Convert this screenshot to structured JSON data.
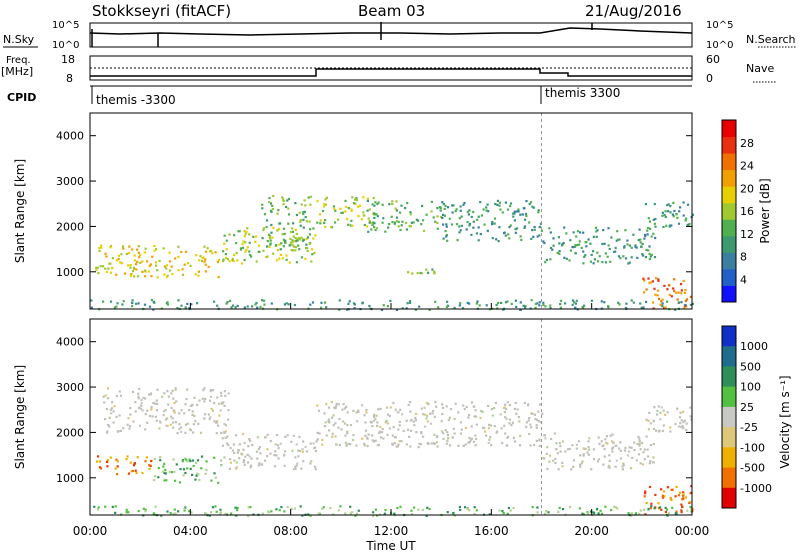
{
  "header": {
    "station": "Stokkseyri (fitACF)",
    "beam": "Beam 03",
    "date": "21/Aug/2016"
  },
  "top_panels": {
    "nsky_label": "N.Sky",
    "nsky_ticks": [
      "10^5",
      "10^0"
    ],
    "nsearch_label": "N.Search",
    "nsearch_ticks": [
      "10^5",
      "10^0"
    ],
    "freq_label": "Freq.",
    "freq_unit": "[MHz]",
    "freq_ticks": [
      "18",
      "8"
    ],
    "nave_label": "Nave",
    "nave_ticks": [
      "60",
      "0"
    ],
    "cpid_label": "CPID",
    "cpid_segments": [
      "themis -3300",
      "themis 3300"
    ]
  },
  "colors": {
    "power_scale": [
      "#1010ff",
      "#2060c8",
      "#3a7fa0",
      "#3d9a70",
      "#50b050",
      "#a0c830",
      "#e8d000",
      "#f0a000",
      "#f07000",
      "#e83010",
      "#e80000"
    ],
    "velocity_scale": [
      "#1030c8",
      "#1f6c8c",
      "#2e8f5a",
      "#52c040",
      "#b4d296",
      "#c8c8c4",
      "#dcc878",
      "#f0b000",
      "#f07000",
      "#e83808",
      "#e00000"
    ],
    "ground_scatter": "#c0c0b8"
  },
  "chart_data": [
    {
      "type": "heatmap",
      "title": "Power",
      "xlabel": "Time UT",
      "ylabel": "Slant Range [km]",
      "x_ticks": [
        "00:00",
        "04:00",
        "08:00",
        "12:00",
        "16:00",
        "20:00",
        "00:00"
      ],
      "y_ticks": [
        "1000",
        "2000",
        "3000",
        "4000"
      ],
      "xlim_hours": [
        0,
        24
      ],
      "ylim_km": [
        180,
        4500
      ],
      "colorbar_label": "Power [dB]",
      "colorbar_ticks": [
        "4",
        "8",
        "12",
        "16",
        "20",
        "24",
        "28"
      ],
      "scatter_bands": [
        {
          "t0": 0.2,
          "t1": 5.2,
          "r0": 900,
          "r1": 1600,
          "level": 6
        },
        {
          "t0": 5.2,
          "t1": 9.0,
          "r0": 1200,
          "r1": 2000,
          "level": 5
        },
        {
          "t0": 6.8,
          "t1": 8.8,
          "r0": 1500,
          "r1": 2700,
          "level": 4
        },
        {
          "t0": 9.0,
          "t1": 11.3,
          "r0": 2000,
          "r1": 2700,
          "level": 5
        },
        {
          "t0": 11.0,
          "t1": 14.0,
          "r0": 1900,
          "r1": 2600,
          "level": 4
        },
        {
          "t0": 14.0,
          "t1": 18.0,
          "r0": 1700,
          "r1": 2600,
          "level": 3
        },
        {
          "t0": 18.0,
          "t1": 22.5,
          "r0": 1200,
          "r1": 2000,
          "level": 3
        },
        {
          "t0": 22.0,
          "t1": 24.0,
          "r0": 2000,
          "r1": 2600,
          "level": 3
        },
        {
          "t0": 22.0,
          "t1": 24.0,
          "r0": 200,
          "r1": 900,
          "level": 8
        },
        {
          "t0": 12.0,
          "t1": 14.0,
          "r0": 950,
          "r1": 1100,
          "level": 4
        },
        {
          "t0": 0.0,
          "t1": 24.0,
          "r0": 180,
          "r1": 400,
          "level": 3
        }
      ]
    },
    {
      "type": "heatmap",
      "title": "Velocity",
      "xlabel": "Time UT",
      "ylabel": "Slant Range [km]",
      "x_ticks": [
        "00:00",
        "04:00",
        "08:00",
        "12:00",
        "16:00",
        "20:00",
        "00:00"
      ],
      "y_ticks": [
        "1000",
        "2000",
        "3000",
        "4000"
      ],
      "xlim_hours": [
        0,
        24
      ],
      "ylim_km": [
        180,
        4500
      ],
      "colorbar_label": "Velocity [m s⁻¹]",
      "colorbar_ticks": [
        "1000",
        "500",
        "100",
        "25",
        "-25",
        "-100",
        "-500",
        "-1000"
      ],
      "scatter_bands": [
        {
          "t0": 0.2,
          "t1": 2.5,
          "r0": 1100,
          "r1": 1500,
          "level": 8
        },
        {
          "t0": 2.5,
          "t1": 5.2,
          "r0": 900,
          "r1": 1500,
          "level": 3
        },
        {
          "t0": 0.5,
          "t1": 5.5,
          "r0": 2000,
          "r1": 3000,
          "level": 5
        },
        {
          "t0": 5.2,
          "t1": 9.0,
          "r0": 1200,
          "r1": 2000,
          "level": 5
        },
        {
          "t0": 9.0,
          "t1": 18.0,
          "r0": 1700,
          "r1": 2700,
          "level": 5
        },
        {
          "t0": 18.0,
          "t1": 22.5,
          "r0": 1200,
          "r1": 2000,
          "level": 5
        },
        {
          "t0": 22.0,
          "t1": 24.0,
          "r0": 2000,
          "r1": 2600,
          "level": 5
        },
        {
          "t0": 22.0,
          "t1": 24.0,
          "r0": 200,
          "r1": 900,
          "level": 8
        },
        {
          "t0": 0.0,
          "t1": 24.0,
          "r0": 180,
          "r1": 400,
          "level": 3
        }
      ]
    }
  ]
}
